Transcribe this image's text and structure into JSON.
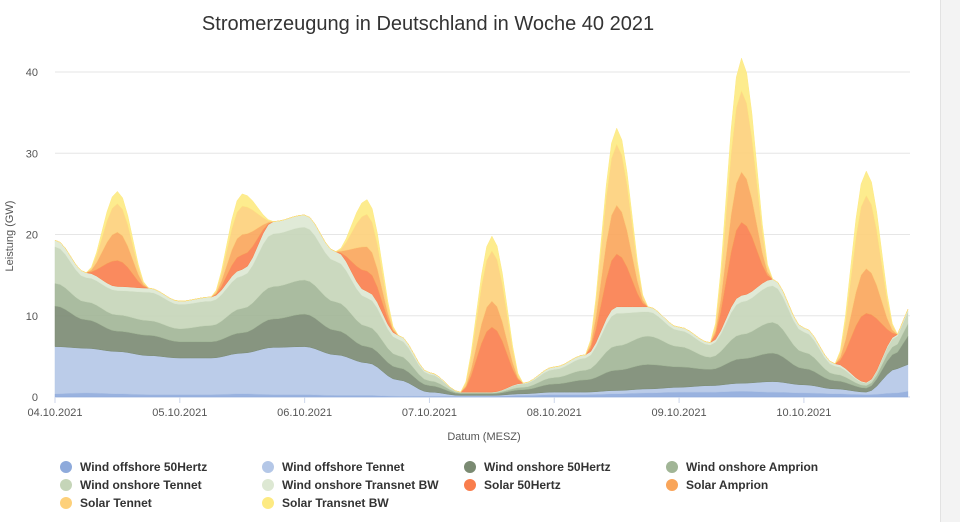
{
  "chart_data": {
    "type": "area",
    "stacked": true,
    "title": "Stromerzeugung in Deutschland in Woche 40 2021",
    "xlabel": "Datum (MESZ)",
    "ylabel": "Leistung (GW)",
    "ylim": [
      0,
      40
    ],
    "yticks": [
      0,
      10,
      20,
      30,
      40
    ],
    "xlim": [
      0,
      6.85
    ],
    "xtick_labels": [
      "04.10.2021",
      "05.10.2021",
      "06.10.2021",
      "07.10.2021",
      "08.10.2021",
      "09.10.2021",
      "10.10.2021"
    ],
    "grid": true,
    "legend_position": "bottom",
    "x_hours": [
      0,
      6,
      12,
      18,
      24,
      30,
      36,
      42,
      48,
      54,
      60,
      66,
      72,
      78,
      84,
      90,
      96,
      102,
      108,
      114,
      120,
      126,
      132,
      138,
      144,
      150,
      156,
      162,
      164
    ],
    "series": [
      {
        "name": "Wind offshore 50Hertz",
        "color": "#8eaadb",
        "values": [
          0.4,
          0.5,
          0.4,
          0.3,
          0.3,
          0.3,
          0.4,
          0.3,
          0.3,
          0.2,
          0.2,
          0.1,
          0.1,
          0.1,
          0.1,
          0.2,
          0.3,
          0.3,
          0.4,
          0.5,
          0.6,
          0.6,
          0.7,
          0.6,
          0.5,
          0.4,
          0.3,
          0.5,
          0.7
        ]
      },
      {
        "name": "Wind offshore Tennet",
        "color": "#b4c7e7",
        "values": [
          5.8,
          5.5,
          5.2,
          4.8,
          4.5,
          4.5,
          5.0,
          5.8,
          5.9,
          5.0,
          4.0,
          2.0,
          0.5,
          0.1,
          0.1,
          0.2,
          0.3,
          0.3,
          0.4,
          0.5,
          0.6,
          0.8,
          1.0,
          1.3,
          1.0,
          0.6,
          0.3,
          3.0,
          3.3
        ]
      },
      {
        "name": "Wind onshore 50Hertz",
        "color": "#7a8a72",
        "values": [
          5.0,
          3.5,
          2.5,
          2.5,
          2.0,
          2.0,
          2.5,
          3.5,
          4.0,
          3.0,
          2.0,
          1.5,
          0.8,
          0.2,
          0.2,
          0.5,
          1.0,
          1.5,
          2.5,
          3.0,
          2.5,
          2.0,
          3.0,
          3.5,
          2.0,
          1.0,
          0.5,
          2.0,
          3.5
        ]
      },
      {
        "name": "Wind onshore Amprion",
        "color": "#a1b596",
        "values": [
          2.8,
          2.2,
          2.0,
          1.8,
          1.6,
          2.0,
          3.0,
          4.0,
          4.2,
          3.5,
          2.5,
          1.5,
          0.6,
          0.1,
          0.1,
          0.3,
          0.8,
          1.2,
          3.0,
          3.5,
          2.5,
          1.5,
          3.0,
          3.8,
          2.0,
          0.8,
          0.3,
          1.0,
          1.5
        ]
      },
      {
        "name": "Wind onshore Tennet",
        "color": "#c5d5b8",
        "values": [
          4.5,
          3.0,
          3.0,
          3.5,
          3.0,
          3.0,
          4.0,
          6.5,
          6.5,
          5.0,
          3.5,
          2.0,
          0.8,
          0.1,
          0.1,
          0.4,
          1.0,
          1.5,
          4.0,
          3.0,
          2.0,
          1.5,
          4.0,
          4.5,
          2.5,
          1.0,
          0.3,
          1.0,
          1.5
        ]
      },
      {
        "name": "Wind onshore Transnet BW",
        "color": "#dde8d3",
        "values": [
          0.8,
          0.6,
          0.5,
          0.5,
          0.4,
          0.5,
          0.8,
          1.5,
          1.5,
          1.2,
          0.8,
          0.5,
          0.2,
          0.0,
          0.0,
          0.1,
          0.3,
          0.4,
          0.8,
          0.6,
          0.4,
          0.3,
          0.8,
          0.8,
          0.5,
          0.3,
          0.1,
          0.2,
          0.3
        ]
      },
      {
        "name": "Solar 50Hertz",
        "color": "#f97d4c",
        "values": [
          0,
          0,
          3.2,
          0,
          0,
          0,
          1.8,
          0,
          0,
          0,
          2.5,
          0,
          0,
          0,
          8.0,
          0,
          0,
          0,
          6.5,
          0,
          0,
          0,
          9.0,
          0,
          0,
          0,
          8.5,
          0,
          0
        ]
      },
      {
        "name": "Solar Amprion",
        "color": "#f9a55a",
        "values": [
          0,
          0,
          3.5,
          0,
          0,
          0,
          2.5,
          0,
          0,
          0,
          3.0,
          0,
          0,
          0,
          3.2,
          0,
          0,
          0,
          6.0,
          0,
          0,
          0,
          6.2,
          0,
          0,
          0,
          5.5,
          0,
          0
        ]
      },
      {
        "name": "Solar Tennet",
        "color": "#fdd07a",
        "values": [
          0,
          0,
          3.5,
          0,
          0,
          0,
          3.5,
          0,
          0,
          0,
          4.0,
          0,
          0,
          0,
          6.2,
          0,
          0,
          0,
          7.5,
          0,
          0,
          0,
          10.0,
          0,
          0,
          0,
          9.0,
          0,
          0
        ]
      },
      {
        "name": "Solar Transnet BW",
        "color": "#fdea82",
        "values": [
          0,
          0,
          1.5,
          0,
          0,
          0,
          1.5,
          0,
          0,
          0,
          1.8,
          0,
          0,
          0,
          1.8,
          0,
          0,
          0,
          2.0,
          0,
          0,
          0,
          4.0,
          0,
          0,
          0,
          3.0,
          0,
          0
        ]
      }
    ]
  }
}
